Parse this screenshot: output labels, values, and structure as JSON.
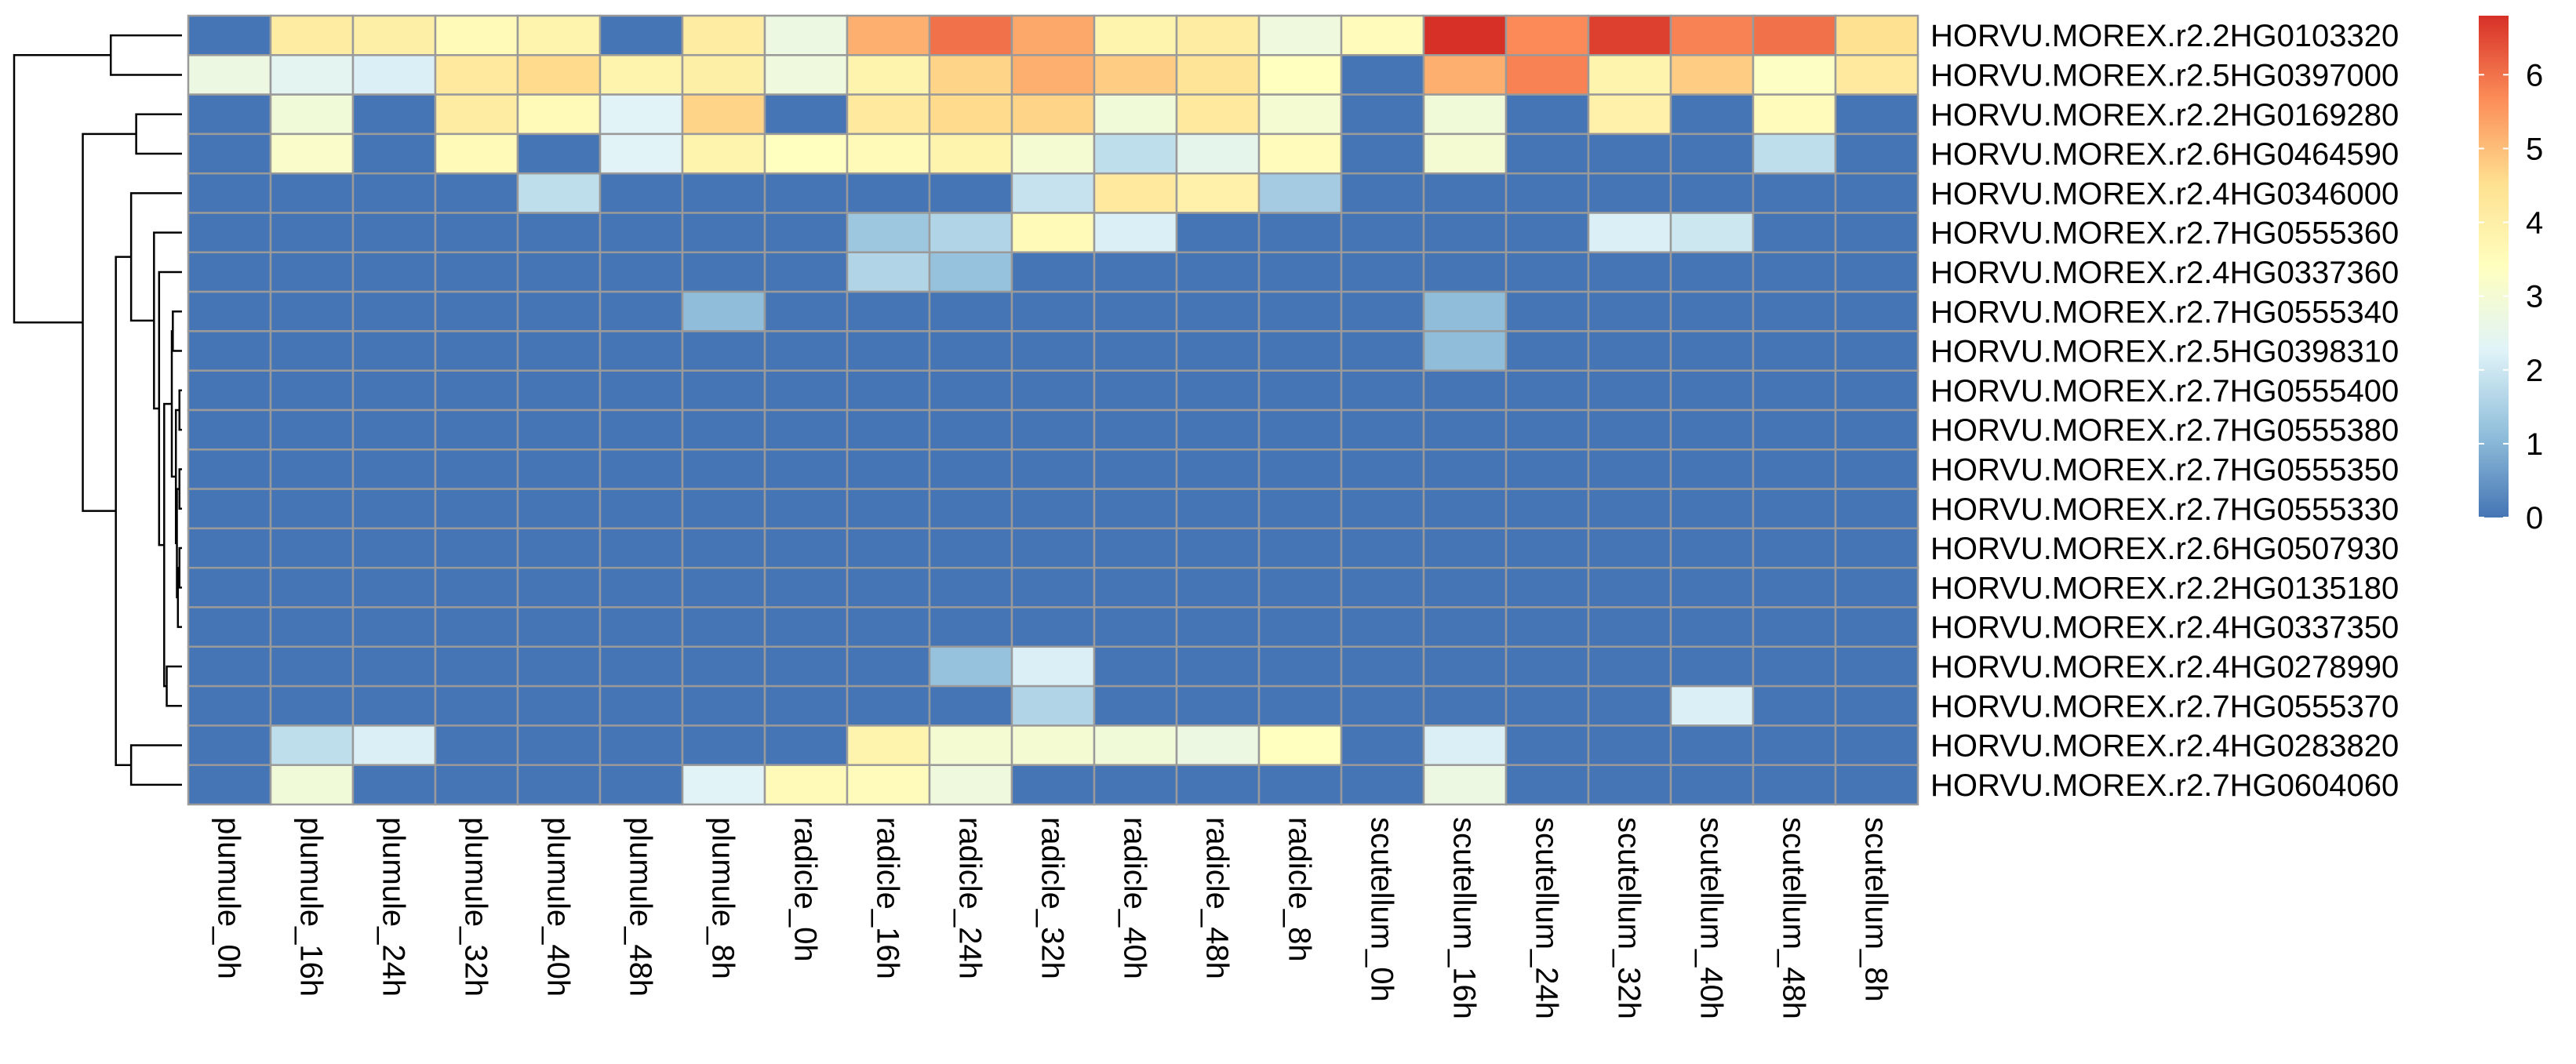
{
  "colors": {
    "scale": [
      "#4575B4",
      "#91BFDB",
      "#E0F3F8",
      "#FFFFBF",
      "#FEE090",
      "#FC8D59",
      "#D73027"
    ],
    "cell_border": "#9A9A9A",
    "dendrogram": "#000000"
  },
  "chart_data": {
    "type": "heatmap",
    "title": "",
    "xlabel": "",
    "ylabel": "",
    "columns": [
      "plumule_0h",
      "plumule_16h",
      "plumule_24h",
      "plumule_32h",
      "plumule_40h",
      "plumule_48h",
      "plumule_8h",
      "radicle_0h",
      "radicle_16h",
      "radicle_24h",
      "radicle_32h",
      "radicle_40h",
      "radicle_48h",
      "radicle_8h",
      "scutellum_0h",
      "scutellum_16h",
      "scutellum_24h",
      "scutellum_32h",
      "scutellum_40h",
      "scutellum_48h",
      "scutellum_8h"
    ],
    "rows": [
      "HORVU.MOREX.r2.2HG0103320",
      "HORVU.MOREX.r2.5HG0397000",
      "HORVU.MOREX.r2.2HG0169280",
      "HORVU.MOREX.r2.6HG0464590",
      "HORVU.MOREX.r2.4HG0346000",
      "HORVU.MOREX.r2.7HG0555360",
      "HORVU.MOREX.r2.4HG0337360",
      "HORVU.MOREX.r2.7HG0555340",
      "HORVU.MOREX.r2.5HG0398310",
      "HORVU.MOREX.r2.7HG0555400",
      "HORVU.MOREX.r2.7HG0555380",
      "HORVU.MOREX.r2.7HG0555350",
      "HORVU.MOREX.r2.7HG0555330",
      "HORVU.MOREX.r2.6HG0507930",
      "HORVU.MOREX.r2.2HG0135180",
      "HORVU.MOREX.r2.4HG0337350",
      "HORVU.MOREX.r2.4HG0278990",
      "HORVU.MOREX.r2.7HG0555370",
      "HORVU.MOREX.r2.4HG0283820",
      "HORVU.MOREX.r2.7HG0604060"
    ],
    "values": [
      [
        0.0,
        4.1,
        4.0,
        3.6,
        3.8,
        0.0,
        4.1,
        2.7,
        5.2,
        6.0,
        5.3,
        3.8,
        4.1,
        2.8,
        3.5,
        6.8,
        5.7,
        6.6,
        5.8,
        6.0,
        4.5
      ],
      [
        2.7,
        2.4,
        2.2,
        4.2,
        4.6,
        3.8,
        4.0,
        2.8,
        3.8,
        4.7,
        5.2,
        4.8,
        4.4,
        3.4,
        0.0,
        5.2,
        5.8,
        3.8,
        4.8,
        3.3,
        4.2
      ],
      [
        0.0,
        2.9,
        0.0,
        4.1,
        3.6,
        2.3,
        4.7,
        0.0,
        4.2,
        4.6,
        4.7,
        2.9,
        4.2,
        3.0,
        0.0,
        2.9,
        0.0,
        3.9,
        0.0,
        3.5,
        0.0
      ],
      [
        0.0,
        3.2,
        0.0,
        3.6,
        0.0,
        2.3,
        3.8,
        3.4,
        3.6,
        3.8,
        3.0,
        1.8,
        2.5,
        3.5,
        0.0,
        3.0,
        0.0,
        0.0,
        0.0,
        1.8,
        0.0
      ],
      [
        0.0,
        0.0,
        0.0,
        0.0,
        1.8,
        0.0,
        0.0,
        0.0,
        0.0,
        0.0,
        1.9,
        4.2,
        3.9,
        1.4,
        0.0,
        0.0,
        0.0,
        0.0,
        0.0,
        0.0,
        0.0
      ],
      [
        0.0,
        0.0,
        0.0,
        0.0,
        0.0,
        0.0,
        0.0,
        0.0,
        1.3,
        1.6,
        3.6,
        2.2,
        0.0,
        0.0,
        0.0,
        0.0,
        0.0,
        2.2,
        2.0,
        0.0,
        0.0
      ],
      [
        0.0,
        0.0,
        0.0,
        0.0,
        0.0,
        0.0,
        0.0,
        0.0,
        1.6,
        1.2,
        0.0,
        0.0,
        0.0,
        0.0,
        0.0,
        0.0,
        0.0,
        0.0,
        0.0,
        0.0,
        0.0
      ],
      [
        0.0,
        0.0,
        0.0,
        0.0,
        0.0,
        0.0,
        1.1,
        0.0,
        0.0,
        0.0,
        0.0,
        0.0,
        0.0,
        0.0,
        0.0,
        1.1,
        0.0,
        0.0,
        0.0,
        0.0,
        0.0
      ],
      [
        0.0,
        0.0,
        0.0,
        0.0,
        0.0,
        0.0,
        0.0,
        0.0,
        0.0,
        0.0,
        0.0,
        0.0,
        0.0,
        0.0,
        0.0,
        1.1,
        0.0,
        0.0,
        0.0,
        0.0,
        0.0
      ],
      [
        0.0,
        0.0,
        0.0,
        0.0,
        0.0,
        0.0,
        0.0,
        0.0,
        0.0,
        0.0,
        0.0,
        0.0,
        0.0,
        0.0,
        0.0,
        0.0,
        0.0,
        0.0,
        0.0,
        0.0,
        0.0
      ],
      [
        0.0,
        0.0,
        0.0,
        0.0,
        0.0,
        0.0,
        0.0,
        0.0,
        0.0,
        0.0,
        0.0,
        0.0,
        0.0,
        0.0,
        0.0,
        0.0,
        0.0,
        0.0,
        0.0,
        0.0,
        0.0
      ],
      [
        0.0,
        0.0,
        0.0,
        0.0,
        0.0,
        0.0,
        0.0,
        0.0,
        0.0,
        0.0,
        0.0,
        0.0,
        0.0,
        0.0,
        0.0,
        0.0,
        0.0,
        0.0,
        0.0,
        0.0,
        0.0
      ],
      [
        0.0,
        0.0,
        0.0,
        0.0,
        0.0,
        0.0,
        0.0,
        0.0,
        0.0,
        0.0,
        0.0,
        0.0,
        0.0,
        0.0,
        0.0,
        0.0,
        0.0,
        0.0,
        0.0,
        0.0,
        0.0
      ],
      [
        0.0,
        0.0,
        0.0,
        0.0,
        0.0,
        0.0,
        0.0,
        0.0,
        0.0,
        0.0,
        0.0,
        0.0,
        0.0,
        0.0,
        0.0,
        0.0,
        0.0,
        0.0,
        0.0,
        0.0,
        0.0
      ],
      [
        0.0,
        0.0,
        0.0,
        0.0,
        0.0,
        0.0,
        0.0,
        0.0,
        0.0,
        0.0,
        0.0,
        0.0,
        0.0,
        0.0,
        0.0,
        0.0,
        0.0,
        0.0,
        0.0,
        0.0,
        0.0
      ],
      [
        0.0,
        0.0,
        0.0,
        0.0,
        0.0,
        0.0,
        0.0,
        0.0,
        0.0,
        0.0,
        0.0,
        0.0,
        0.0,
        0.0,
        0.0,
        0.0,
        0.0,
        0.0,
        0.0,
        0.0,
        0.0
      ],
      [
        0.0,
        0.0,
        0.0,
        0.0,
        0.0,
        0.0,
        0.0,
        0.0,
        0.0,
        1.2,
        2.2,
        0.0,
        0.0,
        0.0,
        0.0,
        0.0,
        0.0,
        0.0,
        0.0,
        0.0,
        0.0
      ],
      [
        0.0,
        0.0,
        0.0,
        0.0,
        0.0,
        0.0,
        0.0,
        0.0,
        0.0,
        0.0,
        1.6,
        0.0,
        0.0,
        0.0,
        0.0,
        0.0,
        0.0,
        0.0,
        2.2,
        0.0,
        0.0
      ],
      [
        0.0,
        1.8,
        2.2,
        0.0,
        0.0,
        0.0,
        0.0,
        0.0,
        3.8,
        3.0,
        3.0,
        2.9,
        2.7,
        3.4,
        0.0,
        2.2,
        0.0,
        0.0,
        0.0,
        0.0,
        0.0
      ],
      [
        0.0,
        2.9,
        0.0,
        0.0,
        0.0,
        0.0,
        2.3,
        3.6,
        3.5,
        2.8,
        0.0,
        0.0,
        0.0,
        0.0,
        0.0,
        2.7,
        0.0,
        0.0,
        0.0,
        0.0,
        0.0
      ]
    ],
    "color_range": [
      0,
      6.8
    ],
    "legend": {
      "placement": "right",
      "ticks": [
        0,
        1,
        2,
        3,
        4,
        5,
        6
      ],
      "tick_labels": [
        "0",
        "1",
        "2",
        "3",
        "4",
        "5",
        "6"
      ]
    },
    "row_dendrogram": {
      "leaf_order": [
        0,
        1,
        2,
        3,
        4,
        5,
        6,
        7,
        8,
        9,
        10,
        11,
        12,
        13,
        14,
        15,
        16,
        17,
        18,
        19
      ],
      "merges": [
        [
          9,
          10,
          0.05
        ],
        [
          11,
          12,
          0.05
        ],
        [
          13,
          14,
          0.05
        ],
        [
          -3,
          15,
          0.08
        ],
        [
          -2,
          -4,
          0.1
        ],
        [
          -1,
          -5,
          0.12
        ],
        [
          7,
          8,
          0.18
        ],
        [
          -7,
          -6,
          0.2
        ],
        [
          16,
          17,
          0.3
        ],
        [
          -8,
          -9,
          0.35
        ],
        [
          6,
          -10,
          0.45
        ],
        [
          5,
          -11,
          0.55
        ],
        [
          2,
          3,
          0.9
        ],
        [
          4,
          -12,
          1.0
        ],
        [
          18,
          19,
          1.0
        ],
        [
          -14,
          -15,
          1.3
        ],
        [
          0,
          1,
          1.4
        ],
        [
          -13,
          -16,
          1.95
        ],
        [
          -17,
          -18,
          3.3
        ]
      ]
    }
  }
}
